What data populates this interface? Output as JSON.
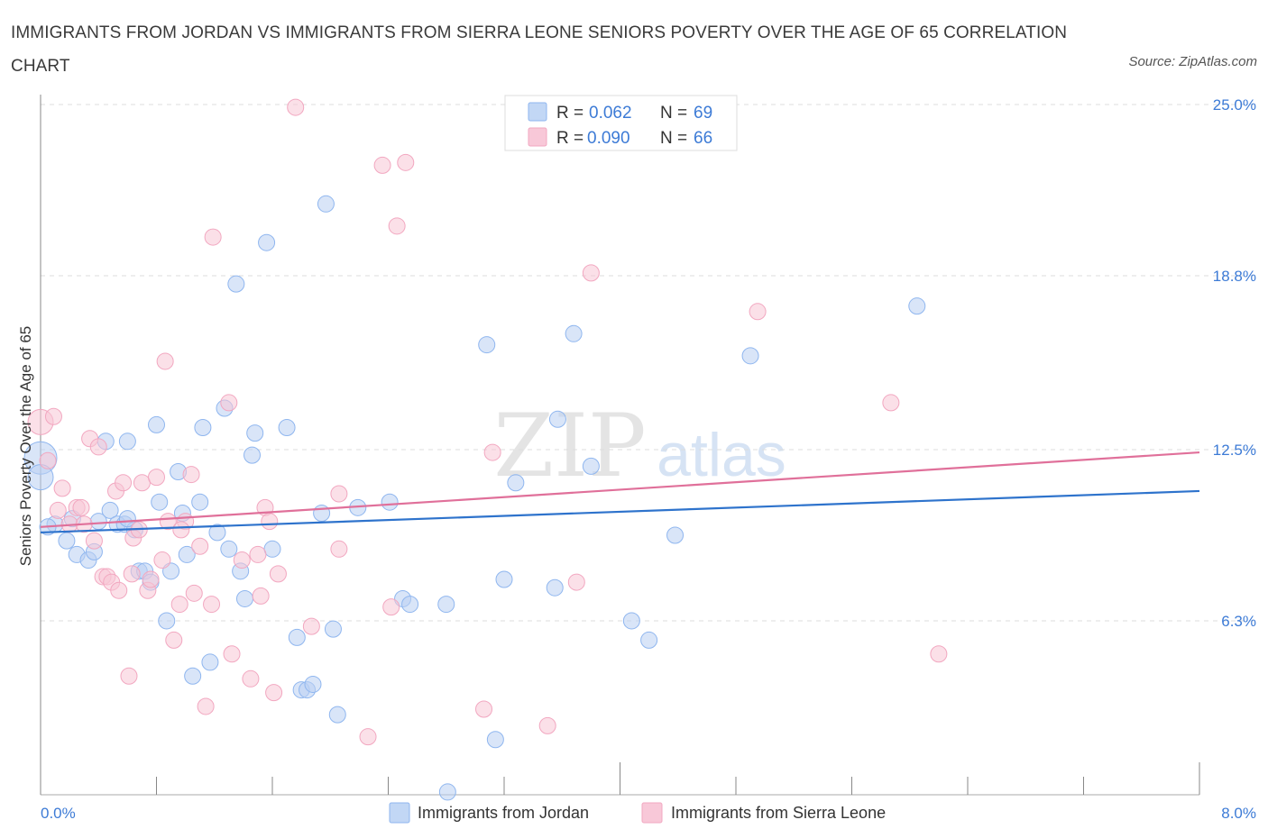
{
  "title": "IMMIGRANTS FROM JORDAN VS IMMIGRANTS FROM SIERRA LEONE SENIORS POVERTY OVER THE AGE OF 65 CORRELATION CHART",
  "source": "Source: ZipAtlas.com",
  "watermark": {
    "zip": "ZIP",
    "atlas": "atlas"
  },
  "chart_data": {
    "type": "scatter",
    "ylabel": "Seniors Poverty Over the Age of 65",
    "xlim": [
      0,
      8
    ],
    "ylim": [
      0,
      25
    ],
    "x_tick_labels": [
      "0.0%",
      "8.0%"
    ],
    "y_ticks": [
      6.3,
      12.5,
      18.8,
      25.0
    ],
    "y_tick_labels": [
      "6.3%",
      "12.5%",
      "18.8%",
      "25.0%"
    ],
    "grid": true,
    "legend_position": "bottom-center",
    "colors": {
      "jordan": "#8fb6ef",
      "jordan_line": "#2e73cc",
      "sierra": "#f2a7c0",
      "sierra_line": "#e0709a",
      "stat_value": "#3d7bd6"
    },
    "stats_box": [
      {
        "r_label": "R =",
        "r": "0.062",
        "n_label": "N =",
        "n": "69"
      },
      {
        "r_label": "R =",
        "r": "0.090",
        "n_label": "N =",
        "n": "66"
      }
    ],
    "series": [
      {
        "name": "Immigrants from Jordan",
        "trend": {
          "x": [
            0,
            8
          ],
          "y": [
            9.5,
            11.0
          ]
        },
        "points": [
          [
            0.0,
            12.2,
            18
          ],
          [
            0.0,
            11.5,
            14
          ],
          [
            0.1,
            9.8,
            9
          ],
          [
            0.18,
            9.2,
            9
          ],
          [
            0.22,
            10.0,
            9
          ],
          [
            0.25,
            8.7,
            9
          ],
          [
            0.33,
            8.5,
            9
          ],
          [
            0.37,
            8.8,
            9
          ],
          [
            0.4,
            9.9,
            9
          ],
          [
            0.45,
            12.8,
            9
          ],
          [
            0.48,
            10.3,
            9
          ],
          [
            0.53,
            9.8,
            9
          ],
          [
            0.58,
            9.8,
            9
          ],
          [
            0.6,
            12.8,
            9
          ],
          [
            0.65,
            9.6,
            9
          ],
          [
            0.68,
            8.1,
            9
          ],
          [
            0.72,
            8.1,
            9
          ],
          [
            0.76,
            7.7,
            9
          ],
          [
            0.8,
            13.4,
            9
          ],
          [
            0.82,
            10.6,
            9
          ],
          [
            0.87,
            6.3,
            9
          ],
          [
            0.9,
            8.1,
            9
          ],
          [
            0.95,
            11.7,
            9
          ],
          [
            0.98,
            10.2,
            9
          ],
          [
            1.01,
            8.7,
            9
          ],
          [
            1.05,
            4.3,
            9
          ],
          [
            1.1,
            10.6,
            9
          ],
          [
            1.12,
            13.3,
            9
          ],
          [
            1.17,
            4.8,
            9
          ],
          [
            1.22,
            9.5,
            9
          ],
          [
            1.27,
            14.0,
            9
          ],
          [
            1.3,
            8.9,
            9
          ],
          [
            1.35,
            18.5,
            9
          ],
          [
            1.38,
            8.1,
            9
          ],
          [
            1.41,
            7.1,
            9
          ],
          [
            1.46,
            12.3,
            9
          ],
          [
            1.48,
            13.1,
            9
          ],
          [
            1.56,
            20.0,
            9
          ],
          [
            1.6,
            8.9,
            9
          ],
          [
            1.7,
            13.3,
            9
          ],
          [
            1.77,
            5.7,
            9
          ],
          [
            1.8,
            3.8,
            9
          ],
          [
            1.84,
            3.8,
            9
          ],
          [
            1.88,
            4.0,
            9
          ],
          [
            1.94,
            10.2,
            9
          ],
          [
            1.97,
            21.4,
            9
          ],
          [
            2.02,
            6.0,
            9
          ],
          [
            2.05,
            2.9,
            9
          ],
          [
            2.19,
            10.4,
            9
          ],
          [
            2.41,
            10.6,
            9
          ],
          [
            2.5,
            7.1,
            9
          ],
          [
            2.55,
            6.9,
            9
          ],
          [
            2.8,
            6.9,
            9
          ],
          [
            2.81,
            0.1,
            9
          ],
          [
            3.08,
            16.3,
            9
          ],
          [
            3.14,
            2.0,
            9
          ],
          [
            3.2,
            7.8,
            9
          ],
          [
            3.28,
            11.3,
            9
          ],
          [
            3.55,
            7.5,
            9
          ],
          [
            3.57,
            13.6,
            9
          ],
          [
            3.68,
            16.7,
            9
          ],
          [
            3.8,
            11.9,
            9
          ],
          [
            4.08,
            6.3,
            9
          ],
          [
            4.2,
            5.6,
            9
          ],
          [
            4.38,
            9.4,
            9
          ],
          [
            4.9,
            15.9,
            9
          ],
          [
            6.05,
            17.7,
            9
          ],
          [
            0.6,
            10.0,
            9
          ],
          [
            0.05,
            9.7,
            9
          ]
        ]
      },
      {
        "name": "Immigrants from Sierra Leone",
        "trend": {
          "x": [
            0,
            8
          ],
          "y": [
            9.7,
            12.4
          ]
        },
        "points": [
          [
            0.0,
            13.5,
            14
          ],
          [
            0.05,
            12.1,
            9
          ],
          [
            0.09,
            13.7,
            9
          ],
          [
            0.12,
            10.3,
            9
          ],
          [
            0.15,
            11.1,
            9
          ],
          [
            0.2,
            9.8,
            9
          ],
          [
            0.25,
            10.4,
            9
          ],
          [
            0.28,
            10.4,
            9
          ],
          [
            0.3,
            9.8,
            9
          ],
          [
            0.34,
            12.9,
            9
          ],
          [
            0.37,
            9.2,
            9
          ],
          [
            0.4,
            12.6,
            9
          ],
          [
            0.43,
            7.9,
            9
          ],
          [
            0.46,
            7.9,
            9
          ],
          [
            0.49,
            7.7,
            9
          ],
          [
            0.52,
            11.0,
            9
          ],
          [
            0.54,
            7.4,
            9
          ],
          [
            0.57,
            11.3,
            9
          ],
          [
            0.61,
            4.3,
            9
          ],
          [
            0.64,
            9.3,
            9
          ],
          [
            0.68,
            9.6,
            9
          ],
          [
            0.7,
            11.3,
            9
          ],
          [
            0.74,
            7.4,
            9
          ],
          [
            0.76,
            7.8,
            9
          ],
          [
            0.8,
            11.5,
            9
          ],
          [
            0.84,
            8.5,
            9
          ],
          [
            0.86,
            15.7,
            9
          ],
          [
            0.88,
            9.9,
            9
          ],
          [
            0.92,
            5.6,
            9
          ],
          [
            0.96,
            6.9,
            9
          ],
          [
            1.0,
            9.9,
            9
          ],
          [
            1.04,
            11.6,
            9
          ],
          [
            1.06,
            7.3,
            9
          ],
          [
            1.1,
            9.0,
            9
          ],
          [
            1.14,
            3.2,
            9
          ],
          [
            1.18,
            6.9,
            9
          ],
          [
            1.19,
            20.2,
            9
          ],
          [
            1.3,
            14.2,
            9
          ],
          [
            1.32,
            5.1,
            9
          ],
          [
            1.39,
            8.5,
            9
          ],
          [
            1.45,
            4.2,
            9
          ],
          [
            1.5,
            8.7,
            9
          ],
          [
            1.52,
            7.2,
            9
          ],
          [
            1.55,
            10.4,
            9
          ],
          [
            1.58,
            9.9,
            9
          ],
          [
            1.61,
            3.7,
            9
          ],
          [
            1.64,
            8.0,
            9
          ],
          [
            1.87,
            6.1,
            9
          ],
          [
            1.76,
            24.9,
            9
          ],
          [
            2.06,
            8.9,
            9
          ],
          [
            2.06,
            10.9,
            9
          ],
          [
            2.26,
            2.1,
            9
          ],
          [
            2.36,
            22.8,
            9
          ],
          [
            2.42,
            6.8,
            9
          ],
          [
            2.46,
            20.6,
            9
          ],
          [
            2.52,
            22.9,
            9
          ],
          [
            3.06,
            3.1,
            9
          ],
          [
            3.12,
            12.4,
            9
          ],
          [
            3.5,
            2.5,
            9
          ],
          [
            3.7,
            7.7,
            9
          ],
          [
            3.8,
            18.9,
            9
          ],
          [
            4.95,
            17.5,
            9
          ],
          [
            5.87,
            14.2,
            9
          ],
          [
            6.2,
            5.1,
            9
          ],
          [
            0.63,
            8.0,
            9
          ],
          [
            0.97,
            9.6,
            9
          ]
        ]
      }
    ]
  }
}
